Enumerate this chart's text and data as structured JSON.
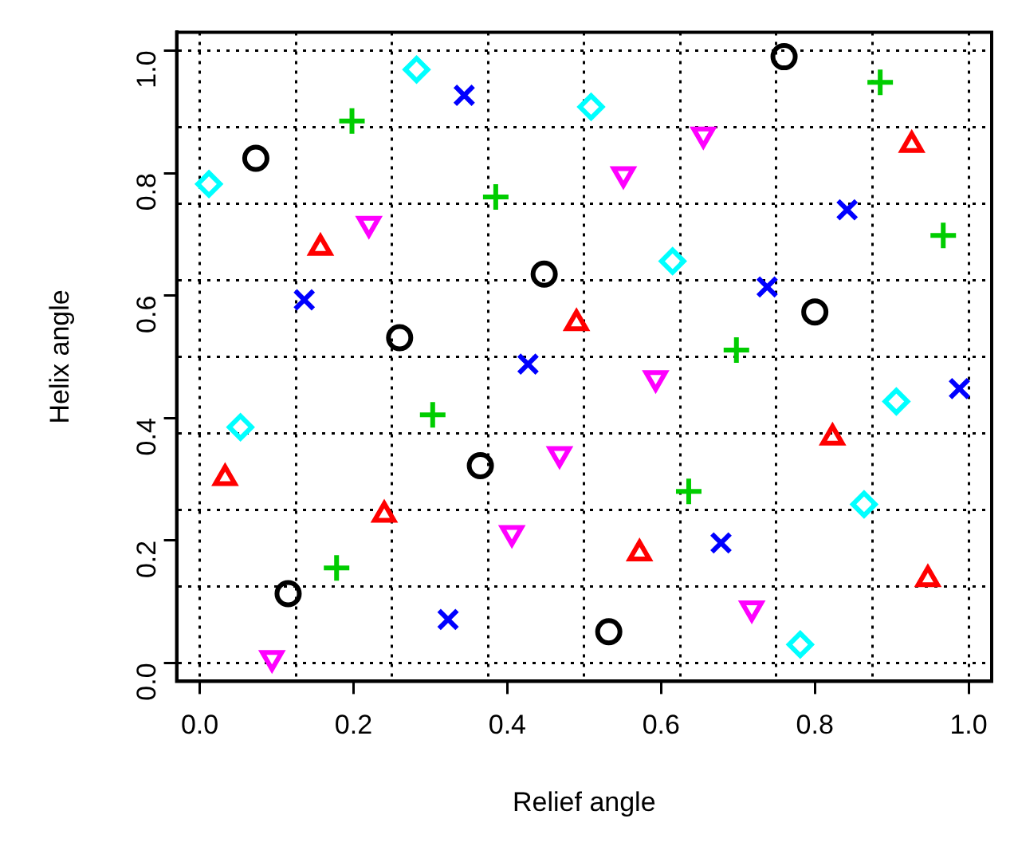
{
  "chart_data": {
    "type": "scatter",
    "xlabel": "Relief angle",
    "ylabel": "Helix angle",
    "xlim": [
      -0.03,
      1.03
    ],
    "ylim": [
      -0.03,
      1.03
    ],
    "xticks": [
      {
        "value": 0,
        "label": "0.0"
      },
      {
        "value": 0.125,
        "label": null
      },
      {
        "value": 0.2,
        "label": "0.2"
      },
      {
        "value": 0.25,
        "label": null
      },
      {
        "value": 0.375,
        "label": null
      },
      {
        "value": 0.4,
        "label": "0.4"
      },
      {
        "value": 0.5,
        "label": null
      },
      {
        "value": 0.6,
        "label": "0.6"
      },
      {
        "value": 0.625,
        "label": null
      },
      {
        "value": 0.75,
        "label": null
      },
      {
        "value": 0.8,
        "label": "0.8"
      },
      {
        "value": 0.875,
        "label": null
      },
      {
        "value": 1,
        "label": "1.0"
      }
    ],
    "yticks": [
      {
        "value": 0,
        "label": "0.0"
      },
      {
        "value": 0.125,
        "label": null
      },
      {
        "value": 0.2,
        "label": "0.2"
      },
      {
        "value": 0.25,
        "label": null
      },
      {
        "value": 0.375,
        "label": null
      },
      {
        "value": 0.4,
        "label": "0.4"
      },
      {
        "value": 0.5,
        "label": null
      },
      {
        "value": 0.6,
        "label": "0.6"
      },
      {
        "value": 0.625,
        "label": null
      },
      {
        "value": 0.75,
        "label": null
      },
      {
        "value": 0.8,
        "label": "0.8"
      },
      {
        "value": 0.875,
        "label": null
      },
      {
        "value": 1,
        "label": "1.0"
      }
    ],
    "grid": true,
    "series": [
      {
        "color": "#000000",
        "marker": "circle",
        "x": [
          0.073,
          0.26,
          0.448,
          0.76,
          0.8,
          0.365,
          0.115,
          0.532
        ],
        "values": [
          0.824,
          0.531,
          0.635,
          0.99,
          0.573,
          0.322,
          0.113,
          0.051
        ]
      },
      {
        "color": "#ff0000",
        "marker": "triangle",
        "x": [
          0.157,
          0.49,
          0.926,
          0.033,
          0.24,
          0.823,
          0.572,
          0.947
        ],
        "values": [
          0.678,
          0.555,
          0.846,
          0.302,
          0.242,
          0.368,
          0.179,
          0.137
        ]
      },
      {
        "color": "#00cd00",
        "marker": "cross",
        "x": [
          0.198,
          0.385,
          0.885,
          0.967,
          0.698,
          0.303,
          0.178,
          0.636
        ],
        "values": [
          0.885,
          0.761,
          0.948,
          0.698,
          0.511,
          0.405,
          0.155,
          0.28
        ]
      },
      {
        "color": "#0000ff",
        "marker": "x",
        "x": [
          0.344,
          0.136,
          0.842,
          0.738,
          0.427,
          0.323,
          0.988,
          0.678
        ],
        "values": [
          0.927,
          0.593,
          0.74,
          0.614,
          0.488,
          0.071,
          0.448,
          0.196
        ]
      },
      {
        "color": "#00ffff",
        "marker": "diamond",
        "x": [
          0.012,
          0.282,
          0.509,
          0.615,
          0.053,
          0.906,
          0.864,
          0.781
        ],
        "values": [
          0.782,
          0.969,
          0.908,
          0.656,
          0.385,
          0.427,
          0.259,
          0.03
        ]
      },
      {
        "color": "#ff00ff",
        "marker": "triangle-down",
        "x": [
          0.22,
          0.655,
          0.551,
          0.468,
          0.406,
          0.094,
          0.593,
          0.718
        ],
        "values": [
          0.717,
          0.863,
          0.798,
          0.341,
          0.212,
          0.008,
          0.465,
          0.089
        ]
      }
    ]
  }
}
